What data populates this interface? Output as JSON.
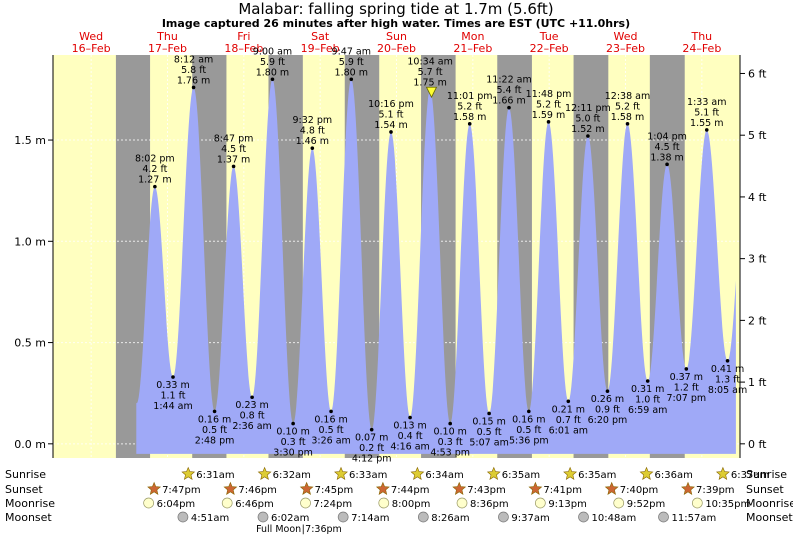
{
  "chart_data": {
    "type": "area",
    "title": "Malabar: falling  spring tide at 1.7m (5.6ft)",
    "subtitle": "Image captured 26 minutes after high water. Times are EST (UTC +11.0hrs)",
    "y_left_ticks": [
      {
        "value": 0.0,
        "label": "0.0 m"
      },
      {
        "value": 0.5,
        "label": "0.5 m"
      },
      {
        "value": 1.0,
        "label": "1.0 m"
      },
      {
        "value": 1.5,
        "label": "1.5 m"
      }
    ],
    "y_right_ticks": [
      {
        "value": 0,
        "label": "0 ft"
      },
      {
        "value": 1,
        "label": "1 ft"
      },
      {
        "value": 2,
        "label": "2 ft"
      },
      {
        "value": 3,
        "label": "3 ft"
      },
      {
        "value": 4,
        "label": "4 ft"
      },
      {
        "value": 5,
        "label": "5 ft"
      },
      {
        "value": 6,
        "label": "6 ft"
      }
    ],
    "ylim_m": [
      -0.07,
      1.92
    ],
    "xlim_hours": [
      -12,
      204
    ],
    "grid": true,
    "days": [
      {
        "name": "Wed",
        "date": "16–Feb",
        "t": 0
      },
      {
        "name": "Thu",
        "date": "17–Feb",
        "t": 24
      },
      {
        "name": "Fri",
        "date": "18–Feb",
        "t": 48
      },
      {
        "name": "Sat",
        "date": "19–Feb",
        "t": 72
      },
      {
        "name": "Sun",
        "date": "20–Feb",
        "t": 96
      },
      {
        "name": "Mon",
        "date": "21–Feb",
        "t": 120
      },
      {
        "name": "Tue",
        "date": "22–Feb",
        "t": 144
      },
      {
        "name": "Wed",
        "date": "23–Feb",
        "t": 168
      },
      {
        "name": "Thu",
        "date": "24–Feb",
        "t": 192
      }
    ],
    "nights": [
      {
        "start": 7.78,
        "end": 18.52
      },
      {
        "start": 31.77,
        "end": 42.53
      },
      {
        "start": 55.75,
        "end": 66.55
      },
      {
        "start": 79.73,
        "end": 90.57
      },
      {
        "start": 103.72,
        "end": 114.58
      },
      {
        "start": 127.68,
        "end": 138.58
      },
      {
        "start": 151.67,
        "end": 162.6
      },
      {
        "start": 175.65,
        "end": 186.62
      }
    ],
    "tides": [
      {
        "t": 20.03,
        "m": 1.27,
        "time": "8:02 pm",
        "ft": "4.2 ft",
        "ml": "1.27 m",
        "type": "high"
      },
      {
        "t": 25.73,
        "m": 0.33,
        "time": "1:44 am",
        "ft": "1.1 ft",
        "ml": "0.33 m",
        "type": "low"
      },
      {
        "t": 32.2,
        "m": 1.76,
        "time": "8:12 am",
        "ft": "5.8 ft",
        "ml": "1.76 m",
        "type": "high"
      },
      {
        "t": 38.8,
        "m": 0.16,
        "time": "2:48 pm",
        "ft": "0.5 ft",
        "ml": "0.16 m",
        "type": "low"
      },
      {
        "t": 44.78,
        "m": 1.37,
        "time": "8:47 pm",
        "ft": "4.5 ft",
        "ml": "1.37 m",
        "type": "high"
      },
      {
        "t": 50.6,
        "m": 0.23,
        "time": "2:36 am",
        "ft": "0.8 ft",
        "ml": "0.23 m",
        "type": "low"
      },
      {
        "t": 57.0,
        "m": 1.8,
        "time": "9:00 am",
        "ft": "5.9 ft",
        "ml": "1.80 m",
        "type": "high"
      },
      {
        "t": 63.5,
        "m": 0.1,
        "time": "3:30 pm",
        "ft": "0.3 ft",
        "ml": "0.10 m",
        "type": "low"
      },
      {
        "t": 69.53,
        "m": 1.46,
        "time": "9:32 pm",
        "ft": "4.8 ft",
        "ml": "1.46 m",
        "type": "high"
      },
      {
        "t": 75.43,
        "m": 0.16,
        "time": "3:26 am",
        "ft": "0.5 ft",
        "ml": "0.16 m",
        "type": "low"
      },
      {
        "t": 81.78,
        "m": 1.8,
        "time": "9:47 am",
        "ft": "5.9 ft",
        "ml": "1.80 m",
        "type": "high"
      },
      {
        "t": 88.2,
        "m": 0.07,
        "time": "4:12 pm",
        "ft": "0.2 ft",
        "ml": "0.07 m",
        "type": "low"
      },
      {
        "t": 94.27,
        "m": 1.54,
        "time": "10:16 pm",
        "ft": "5.1 ft",
        "ml": "1.54 m",
        "type": "high"
      },
      {
        "t": 100.27,
        "m": 0.13,
        "time": "4:16 am",
        "ft": "0.4 ft",
        "ml": "0.13 m",
        "type": "low"
      },
      {
        "t": 106.57,
        "m": 1.75,
        "time": "10:34 am",
        "ft": "5.7 ft",
        "ml": "1.75 m",
        "type": "high"
      },
      {
        "t": 112.88,
        "m": 0.1,
        "time": "4:53 pm",
        "ft": "0.3 ft",
        "ml": "0.10 m",
        "type": "low"
      },
      {
        "t": 119.02,
        "m": 1.58,
        "time": "11:01 pm",
        "ft": "5.2 ft",
        "ml": "1.58 m",
        "type": "high"
      },
      {
        "t": 125.12,
        "m": 0.15,
        "time": "5:07 am",
        "ft": "0.5 ft",
        "ml": "0.15 m",
        "type": "low"
      },
      {
        "t": 131.37,
        "m": 1.66,
        "time": "11:22 am",
        "ft": "5.4 ft",
        "ml": "1.66 m",
        "type": "high"
      },
      {
        "t": 137.6,
        "m": 0.16,
        "time": "5:36 pm",
        "ft": "0.5 ft",
        "ml": "0.16 m",
        "type": "low"
      },
      {
        "t": 143.8,
        "m": 1.59,
        "time": "11:48 pm",
        "ft": "5.2 ft",
        "ml": "1.59 m",
        "type": "high"
      },
      {
        "t": 150.02,
        "m": 0.21,
        "time": "6:01 am",
        "ft": "0.7 ft",
        "ml": "0.21 m",
        "type": "low"
      },
      {
        "t": 156.18,
        "m": 1.52,
        "time": "12:11 pm",
        "ft": "5.0 ft",
        "ml": "1.52 m",
        "type": "high"
      },
      {
        "t": 162.33,
        "m": 0.26,
        "time": "6:20 pm",
        "ft": "0.9 ft",
        "ml": "0.26 m",
        "type": "low"
      },
      {
        "t": 168.63,
        "m": 1.58,
        "time": "12:38 am",
        "ft": "5.2 ft",
        "ml": "1.58 m",
        "type": "high"
      },
      {
        "t": 174.98,
        "m": 0.31,
        "time": "6:59 am",
        "ft": "1.0 ft",
        "ml": "0.31 m",
        "type": "low"
      },
      {
        "t": 181.07,
        "m": 1.38,
        "time": "1:04 pm",
        "ft": "4.5 ft",
        "ml": "1.38 m",
        "type": "high"
      },
      {
        "t": 187.12,
        "m": 0.37,
        "time": "7:07 pm",
        "ft": "1.2 ft",
        "ml": "0.37 m",
        "type": "low"
      },
      {
        "t": 193.55,
        "m": 1.55,
        "time": "1:33 am",
        "ft": "5.1 ft",
        "ml": "1.55 m",
        "type": "high"
      },
      {
        "t": 200.08,
        "m": 0.41,
        "time": "8:05 am",
        "ft": "1.3 ft",
        "ml": "0.41 m",
        "type": "low"
      }
    ],
    "curve_start_m": 0.85,
    "curve_end_m": 0.8,
    "now_t": 107.0,
    "sun_rows": [
      {
        "label": "Sunrise",
        "events": [
          {
            "t": 30.52,
            "text": "6:31am"
          },
          {
            "t": 54.53,
            "text": "6:32am"
          },
          {
            "t": 78.55,
            "text": "6:33am"
          },
          {
            "t": 102.57,
            "text": "6:34am"
          },
          {
            "t": 126.58,
            "text": "6:35am"
          },
          {
            "t": 150.58,
            "text": "6:35am"
          },
          {
            "t": 174.6,
            "text": "6:36am"
          },
          {
            "t": 198.62,
            "text": "6:37am"
          }
        ]
      },
      {
        "label": "Sunset",
        "events": [
          {
            "t": 19.78,
            "text": "7:47pm"
          },
          {
            "t": 43.77,
            "text": "7:46pm"
          },
          {
            "t": 67.75,
            "text": "7:45pm"
          },
          {
            "t": 91.73,
            "text": "7:44pm"
          },
          {
            "t": 115.72,
            "text": "7:43pm"
          },
          {
            "t": 139.68,
            "text": "7:41pm"
          },
          {
            "t": 163.67,
            "text": "7:40pm"
          },
          {
            "t": 187.65,
            "text": "7:39pm"
          }
        ]
      },
      {
        "label": "Moonrise",
        "events": [
          {
            "t": 18.07,
            "text": "6:04pm"
          },
          {
            "t": 42.77,
            "text": "6:46pm"
          },
          {
            "t": 67.4,
            "text": "7:24pm"
          },
          {
            "t": 92.0,
            "text": "8:00pm"
          },
          {
            "t": 116.6,
            "text": "8:36pm"
          },
          {
            "t": 141.22,
            "text": "9:13pm"
          },
          {
            "t": 165.87,
            "text": "9:52pm"
          },
          {
            "t": 190.58,
            "text": "10:35pm"
          }
        ]
      },
      {
        "label": "Moonset",
        "events": [
          {
            "t": 28.85,
            "text": "4:51am"
          },
          {
            "t": 54.03,
            "text": "6:02am"
          },
          {
            "t": 79.23,
            "text": "7:14am"
          },
          {
            "t": 104.43,
            "text": "8:26am"
          },
          {
            "t": 129.62,
            "text": "9:37am"
          },
          {
            "t": 154.8,
            "text": "10:48am"
          },
          {
            "t": 179.95,
            "text": "11:57am"
          }
        ]
      }
    ],
    "full_moon": {
      "text": "Full Moon",
      "time": "7:36pm",
      "t": 67.6
    },
    "colors": {
      "day": "#ffffc0",
      "night": "#999999",
      "water": "#9fa9f7",
      "date": "#e00000",
      "sun_star": "#ddcc33",
      "sunset_star": "#cc6633",
      "moonrise": "#ffffcc",
      "moonset": "#bbbbbb"
    }
  }
}
